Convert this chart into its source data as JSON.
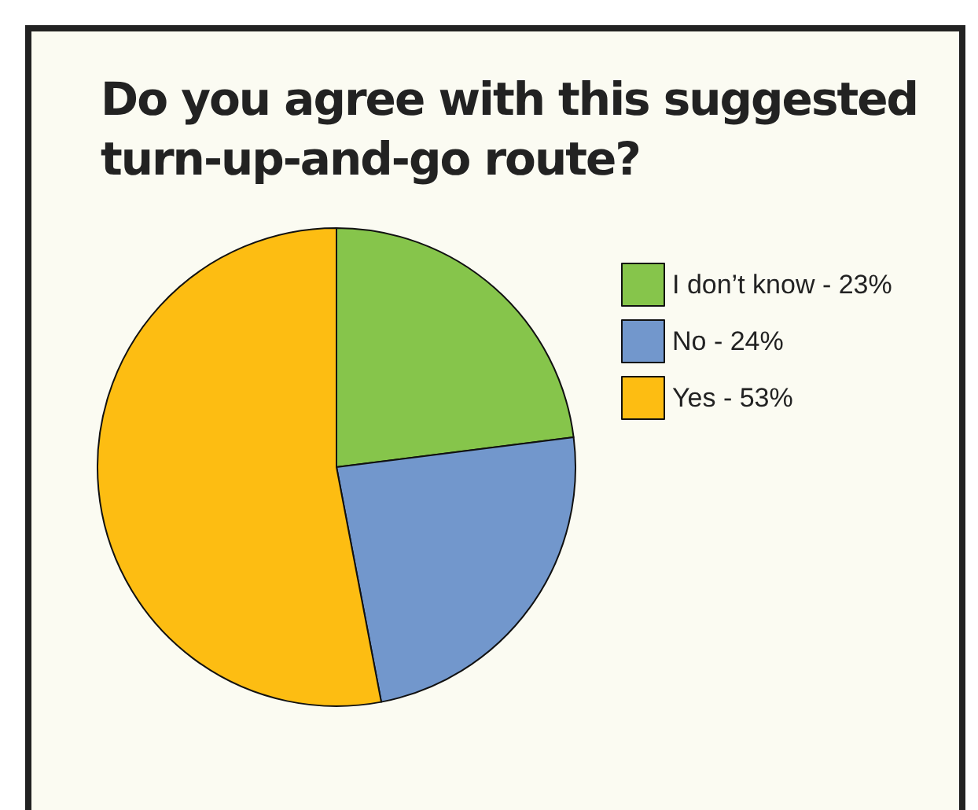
{
  "chart_data": {
    "type": "pie",
    "title": "Do you agree with this suggested turn-up-and-go route?",
    "categories": [
      "I don’t know - 23%",
      "No - 24%",
      "Yes - 53%"
    ],
    "values": [
      23,
      24,
      53
    ],
    "colors": [
      "#86c54b",
      "#7297cc",
      "#fdbd12"
    ],
    "legend": "top right"
  }
}
